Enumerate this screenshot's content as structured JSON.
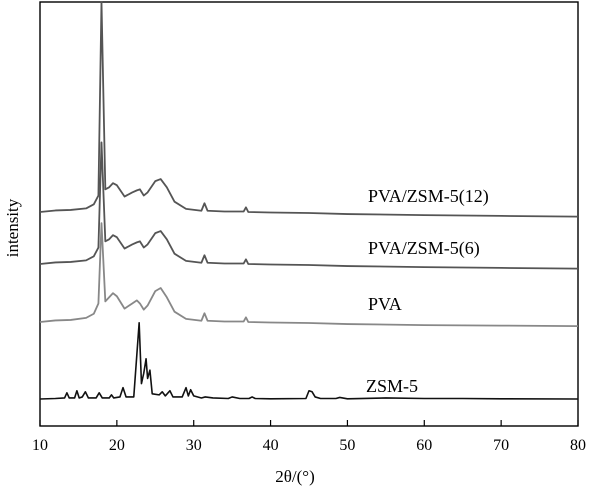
{
  "chart_data": {
    "type": "line",
    "xlabel": "2θ/(°)",
    "ylabel": "intensity",
    "xlim": [
      10,
      80
    ],
    "xticks": [
      "10",
      "20",
      "30",
      "40",
      "50",
      "60",
      "70",
      "80"
    ],
    "yticks": [],
    "grid": false,
    "legend": "inline labels beside curves",
    "series": [
      {
        "name": "PVA/ZSM-5(12)",
        "color": "#555555",
        "points": [
          [
            10,
            0.0
          ],
          [
            12,
            0.15
          ],
          [
            14,
            0.2
          ],
          [
            16,
            0.35
          ],
          [
            17,
            0.75
          ],
          [
            17.6,
            1.6
          ],
          [
            18.0,
            20.4
          ],
          [
            18.5,
            2.2
          ],
          [
            19.0,
            2.4
          ],
          [
            19.5,
            2.8
          ],
          [
            20.0,
            2.6
          ],
          [
            21.0,
            1.5
          ],
          [
            22.0,
            1.9
          ],
          [
            22.6,
            2.1
          ],
          [
            23.0,
            2.2
          ],
          [
            23.5,
            1.6
          ],
          [
            24.0,
            1.9
          ],
          [
            25.0,
            3.0
          ],
          [
            25.7,
            3.2
          ],
          [
            26.5,
            2.4
          ],
          [
            27.5,
            1.0
          ],
          [
            29.0,
            0.3
          ],
          [
            31.0,
            0.12
          ],
          [
            31.4,
            0.85
          ],
          [
            31.8,
            0.12
          ],
          [
            34,
            0.05
          ],
          [
            36.5,
            0.05
          ],
          [
            36.8,
            0.45
          ],
          [
            37.1,
            0.0
          ],
          [
            40,
            -0.05
          ],
          [
            45,
            -0.1
          ],
          [
            50,
            -0.2
          ],
          [
            60,
            -0.3
          ],
          [
            70,
            -0.38
          ],
          [
            80,
            -0.45
          ]
        ]
      },
      {
        "name": "PVA/ZSM-5(6)",
        "color": "#555555",
        "points": [
          [
            10,
            0.0
          ],
          [
            12,
            0.15
          ],
          [
            14,
            0.2
          ],
          [
            16,
            0.35
          ],
          [
            17,
            0.75
          ],
          [
            17.6,
            1.6
          ],
          [
            18.0,
            11.8
          ],
          [
            18.5,
            2.2
          ],
          [
            19.0,
            2.4
          ],
          [
            19.5,
            2.8
          ],
          [
            20.0,
            2.6
          ],
          [
            21.0,
            1.5
          ],
          [
            22.0,
            1.9
          ],
          [
            22.6,
            2.1
          ],
          [
            23.0,
            2.2
          ],
          [
            23.5,
            1.6
          ],
          [
            24.0,
            1.9
          ],
          [
            25.0,
            3.0
          ],
          [
            25.7,
            3.2
          ],
          [
            26.5,
            2.4
          ],
          [
            27.5,
            1.0
          ],
          [
            29.0,
            0.3
          ],
          [
            31.0,
            0.12
          ],
          [
            31.4,
            0.85
          ],
          [
            31.8,
            0.12
          ],
          [
            34,
            0.05
          ],
          [
            36.5,
            0.05
          ],
          [
            36.8,
            0.45
          ],
          [
            37.1,
            0.0
          ],
          [
            40,
            -0.05
          ],
          [
            45,
            -0.1
          ],
          [
            50,
            -0.2
          ],
          [
            60,
            -0.3
          ],
          [
            70,
            -0.38
          ],
          [
            80,
            -0.45
          ]
        ]
      },
      {
        "name": "PVA",
        "color": "#888888",
        "points": [
          [
            10,
            0.0
          ],
          [
            12,
            0.15
          ],
          [
            14,
            0.2
          ],
          [
            16,
            0.4
          ],
          [
            17,
            0.8
          ],
          [
            17.6,
            1.8
          ],
          [
            18.0,
            9.6
          ],
          [
            18.5,
            2.0
          ],
          [
            19.0,
            2.4
          ],
          [
            19.5,
            2.8
          ],
          [
            20.0,
            2.5
          ],
          [
            21.0,
            1.3
          ],
          [
            22.0,
            1.8
          ],
          [
            22.6,
            2.1
          ],
          [
            23.0,
            1.8
          ],
          [
            23.5,
            1.2
          ],
          [
            24.0,
            1.6
          ],
          [
            25.0,
            3.0
          ],
          [
            25.7,
            3.3
          ],
          [
            26.5,
            2.4
          ],
          [
            27.5,
            1.0
          ],
          [
            29.0,
            0.3
          ],
          [
            31.0,
            0.12
          ],
          [
            31.4,
            0.85
          ],
          [
            31.8,
            0.12
          ],
          [
            34,
            0.05
          ],
          [
            36.5,
            0.05
          ],
          [
            36.8,
            0.45
          ],
          [
            37.1,
            0.0
          ],
          [
            40,
            -0.05
          ],
          [
            45,
            -0.1
          ],
          [
            50,
            -0.2
          ],
          [
            60,
            -0.3
          ],
          [
            70,
            -0.35
          ],
          [
            80,
            -0.4
          ]
        ]
      },
      {
        "name": "ZSM-5",
        "color": "#111111",
        "points": [
          [
            10,
            0.0
          ],
          [
            12,
            0.05
          ],
          [
            13.2,
            0.1
          ],
          [
            13.5,
            0.6
          ],
          [
            13.8,
            0.1
          ],
          [
            14.5,
            0.1
          ],
          [
            14.8,
            0.8
          ],
          [
            15.1,
            0.1
          ],
          [
            15.5,
            0.2
          ],
          [
            15.9,
            0.7
          ],
          [
            16.3,
            0.1
          ],
          [
            17.3,
            0.1
          ],
          [
            17.7,
            0.6
          ],
          [
            18.1,
            0.1
          ],
          [
            19.0,
            0.1
          ],
          [
            19.3,
            0.4
          ],
          [
            19.6,
            0.1
          ],
          [
            20.4,
            0.2
          ],
          [
            20.8,
            1.1
          ],
          [
            21.2,
            0.2
          ],
          [
            22.2,
            0.2
          ],
          [
            22.9,
            7.4
          ],
          [
            23.2,
            1.5
          ],
          [
            23.5,
            2.5
          ],
          [
            23.8,
            3.9
          ],
          [
            24.0,
            2.0
          ],
          [
            24.3,
            2.8
          ],
          [
            24.6,
            0.5
          ],
          [
            25.5,
            0.4
          ],
          [
            25.9,
            0.7
          ],
          [
            26.3,
            0.3
          ],
          [
            26.9,
            0.8
          ],
          [
            27.3,
            0.2
          ],
          [
            28.5,
            0.2
          ],
          [
            29.0,
            1.1
          ],
          [
            29.3,
            0.3
          ],
          [
            29.6,
            0.9
          ],
          [
            30.0,
            0.3
          ],
          [
            31.0,
            0.1
          ],
          [
            31.5,
            0.2
          ],
          [
            32.5,
            0.1
          ],
          [
            34.5,
            0.05
          ],
          [
            35.0,
            0.2
          ],
          [
            36.0,
            0.05
          ],
          [
            37.2,
            0.05
          ],
          [
            37.6,
            0.2
          ],
          [
            38,
            0.05
          ],
          [
            40,
            0.02
          ],
          [
            44.6,
            0.05
          ],
          [
            45.0,
            0.8
          ],
          [
            45.4,
            0.7
          ],
          [
            45.8,
            0.2
          ],
          [
            46.5,
            0.05
          ],
          [
            48.5,
            0.05
          ],
          [
            49.0,
            0.15
          ],
          [
            50,
            0.02
          ],
          [
            55,
            0.1
          ],
          [
            60,
            0.05
          ],
          [
            65,
            0.05
          ],
          [
            70,
            0.02
          ],
          [
            80,
            0.0
          ]
        ]
      }
    ]
  }
}
